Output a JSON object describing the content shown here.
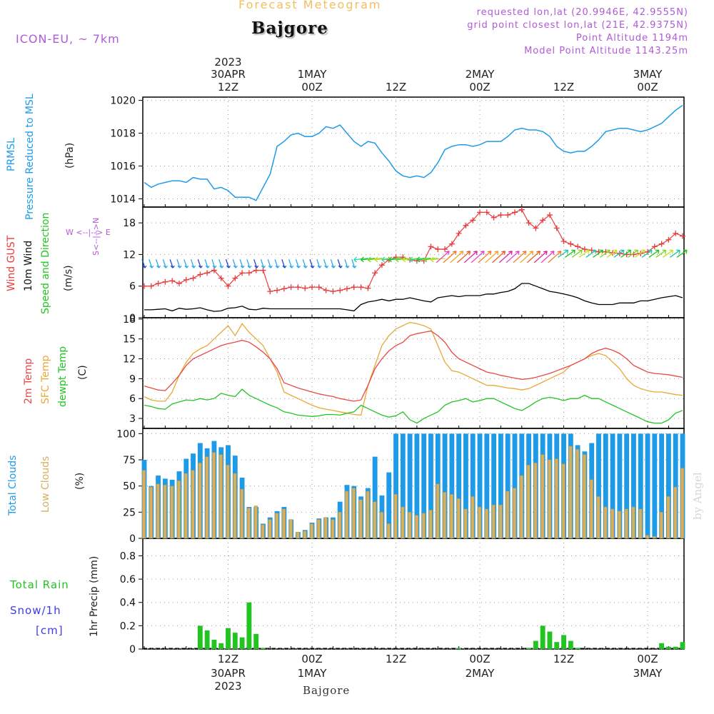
{
  "header": {
    "subtitle": "Forecast Meteogram",
    "title": "Bajgore",
    "model": "ICON-EU, ~ 7km",
    "requested": "requested lon,lat (20.9946E, 42.9555N)",
    "grid_point": "grid point closest lon,lat (21E, 42.9375N)",
    "point_altitude": "Point Altitude 1194m",
    "model_altitude": "Model Point Altitude 1143.25m"
  },
  "time_axis": {
    "top_labels": [
      {
        "l1": "2023",
        "l2": "30APR",
        "l3": "12Z",
        "hour": 12
      },
      {
        "l1": "",
        "l2": "1MAY",
        "l3": "00Z",
        "hour": 24
      },
      {
        "l1": "",
        "l2": "",
        "l3": "12Z",
        "hour": 36
      },
      {
        "l1": "",
        "l2": "2MAY",
        "l3": "00Z",
        "hour": 48
      },
      {
        "l1": "",
        "l2": "",
        "l3": "12Z",
        "hour": 60
      },
      {
        "l1": "",
        "l2": "3MAY",
        "l3": "00Z",
        "hour": 72
      }
    ],
    "bottom_labels": [
      {
        "l1": "12Z",
        "l2": "30APR",
        "l3": "2023",
        "hour": 12
      },
      {
        "l1": "00Z",
        "l2": "1MAY",
        "l3": "",
        "hour": 24
      },
      {
        "l1": "12Z",
        "l2": "",
        "l3": "",
        "hour": 36
      },
      {
        "l1": "00Z",
        "l2": "2MAY",
        "l3": "",
        "hour": 48
      },
      {
        "l1": "12Z",
        "l2": "",
        "l3": "",
        "hour": 60
      },
      {
        "l1": "00Z",
        "l2": "3MAY",
        "l3": "",
        "hour": 72
      }
    ],
    "bottom_name": "Bajgore"
  },
  "panel_labels": {
    "pressure": {
      "l1": "PRMSL",
      "l2": "Pressure Reduced to MSL",
      "unit": "(hPa)"
    },
    "wind": {
      "gust": "Wind GUST",
      "wind10": "10m Wind",
      "dir": "Speed and Direction",
      "unit": "(m/s)",
      "compass": "W <--|--> E",
      "compass_ns": "S<--|-->N"
    },
    "temp": {
      "t2m": "2m Temp",
      "sfc": "SFC Temp",
      "dew": "dewpt Temp",
      "unit": "(C)"
    },
    "clouds": {
      "total": "Total Clouds",
      "low": "Low Clouds",
      "unit": "(%)"
    },
    "precip": {
      "rain": "Total  Rain",
      "snow": "Snow/1h",
      "snow_unit": "[cm]",
      "ylabel": "1hr Precip (mm)"
    }
  },
  "watermark": "by Angel",
  "colors": {
    "pressure": "#1e9be8",
    "gust": "#e83c3c",
    "wind10": "#000000",
    "t2m": "#e84848",
    "sfc": "#e8a838",
    "dew": "#22c422",
    "total_cloud": "#1e9be8",
    "low_cloud": "#d4b060",
    "rain": "#22c422",
    "purple": "#b05ad8"
  },
  "chart_data": [
    {
      "type": "line",
      "title": "",
      "ylabel": "PRMSL Pressure Reduced to MSL (hPa)",
      "ylim": [
        1013.5,
        1020.2
      ],
      "yticks": [
        1014,
        1016,
        1018,
        1020
      ],
      "x_start_hour": 0,
      "x_step_hours": 1,
      "series": [
        {
          "name": "PRMSL",
          "values": [
            1015.0,
            1014.7,
            1014.9,
            1015.0,
            1015.1,
            1015.1,
            1015.0,
            1015.3,
            1015.2,
            1015.2,
            1014.6,
            1014.7,
            1014.5,
            1014.1,
            1014.1,
            1014.1,
            1013.9,
            1014.7,
            1015.5,
            1017.2,
            1017.5,
            1017.9,
            1018.0,
            1017.8,
            1017.8,
            1018.0,
            1018.4,
            1018.3,
            1018.5,
            1018.0,
            1017.5,
            1017.2,
            1017.5,
            1017.4,
            1016.8,
            1016.3,
            1015.7,
            1015.4,
            1015.3,
            1015.4,
            1015.3,
            1015.6,
            1016.2,
            1017.0,
            1017.2,
            1017.3,
            1017.3,
            1017.2,
            1017.3,
            1017.5,
            1017.5,
            1017.5,
            1017.8,
            1018.2,
            1018.3,
            1018.2,
            1018.2,
            1018.1,
            1017.8,
            1017.2,
            1016.9,
            1016.8,
            1016.9,
            1016.9,
            1017.2,
            1017.6,
            1018.1,
            1018.2,
            1018.3,
            1018.3,
            1018.2,
            1018.1,
            1018.2,
            1018.4,
            1018.6,
            1019.0,
            1019.4,
            1019.7
          ]
        }
      ],
      "grid": true
    },
    {
      "type": "line",
      "title": "",
      "ylabel": "(m/s)",
      "ylim": [
        0,
        21
      ],
      "yticks": [
        0,
        6,
        12,
        18
      ],
      "x_start_hour": 0,
      "x_step_hours": 1,
      "series": [
        {
          "name": "Wind GUST",
          "values": [
            6.0,
            6.0,
            6.5,
            6.8,
            7.0,
            6.5,
            7.2,
            7.5,
            8.2,
            8.5,
            9.0,
            7.5,
            6.0,
            7.5,
            8.5,
            8.5,
            9.0,
            9.0,
            5.0,
            5.2,
            5.5,
            5.8,
            5.8,
            5.6,
            5.8,
            5.8,
            5.2,
            5.0,
            5.2,
            5.5,
            5.8,
            5.8,
            5.6,
            8.5,
            10.0,
            11.0,
            11.5,
            11.5,
            11.0,
            10.8,
            10.8,
            13.5,
            13.0,
            13.0,
            14.0,
            16.0,
            17.5,
            18.5,
            20.0,
            20.0,
            19.0,
            19.5,
            19.5,
            20.0,
            20.5,
            18.0,
            17.0,
            18.5,
            19.5,
            17.0,
            14.5,
            14.0,
            13.5,
            13.0,
            12.8,
            12.5,
            12.5,
            12.3,
            12.2,
            12.0,
            12.0,
            12.2,
            12.5,
            13.5,
            14.0,
            14.8,
            16.0,
            15.5
          ]
        },
        {
          "name": "10m Wind",
          "values": [
            1.5,
            1.5,
            1.6,
            1.7,
            1.3,
            1.8,
            1.6,
            1.7,
            1.9,
            1.5,
            1.2,
            1.3,
            1.8,
            1.9,
            2.2,
            1.6,
            1.5,
            1.8,
            1.7,
            1.7,
            1.7,
            1.7,
            1.7,
            1.7,
            1.7,
            1.7,
            1.7,
            1.7,
            1.7,
            1.5,
            1.3,
            2.5,
            3.0,
            3.2,
            3.5,
            3.2,
            3.5,
            3.5,
            3.8,
            3.5,
            3.2,
            3.0,
            3.8,
            4.0,
            4.2,
            4.0,
            4.2,
            4.2,
            4.2,
            4.5,
            4.5,
            4.8,
            5.0,
            5.5,
            6.5,
            6.5,
            6.0,
            5.5,
            5.0,
            4.8,
            4.5,
            4.2,
            3.8,
            3.2,
            2.8,
            2.5,
            2.5,
            2.5,
            2.8,
            2.8,
            2.8,
            3.2,
            3.2,
            3.5,
            3.8,
            4.0,
            4.2,
            3.8
          ]
        }
      ],
      "wind_barbs_y": [
        10,
        10,
        10,
        10,
        10,
        10,
        10,
        10,
        10,
        10,
        10,
        10,
        10,
        10,
        10,
        10,
        10,
        10,
        10,
        10,
        10,
        10,
        10,
        10,
        10,
        10,
        10,
        10,
        10,
        10,
        10,
        11,
        11,
        11,
        11,
        11,
        11,
        11,
        11,
        11,
        11,
        11,
        11,
        11,
        11,
        11,
        11,
        11,
        11,
        11,
        11,
        11,
        11,
        11,
        11,
        11,
        11,
        11,
        11,
        11,
        12,
        12,
        12,
        12,
        12,
        12,
        12,
        12,
        12,
        12,
        12,
        12,
        12,
        12,
        12,
        12,
        12,
        12
      ],
      "grid": true
    },
    {
      "type": "line",
      "title": "",
      "ylabel": "(C)",
      "ylim": [
        1.5,
        18.2
      ],
      "yticks": [
        3,
        6,
        9,
        12,
        15,
        18
      ],
      "x_start_hour": 0,
      "x_step_hours": 1,
      "series": [
        {
          "name": "2m Temp",
          "values": [
            7.9,
            7.6,
            7.3,
            7.2,
            8.3,
            9.5,
            11.0,
            12.0,
            12.5,
            13.0,
            13.5,
            14.0,
            14.3,
            14.5,
            14.8,
            14.5,
            13.8,
            13.0,
            12.0,
            10.5,
            8.4,
            8.0,
            7.6,
            7.3,
            7.0,
            6.7,
            6.5,
            6.3,
            6.0,
            5.8,
            5.6,
            5.8,
            8.0,
            10.5,
            12.0,
            13.2,
            14.0,
            14.5,
            15.5,
            15.8,
            16.0,
            16.2,
            15.5,
            14.5,
            13.0,
            12.0,
            11.5,
            11.0,
            10.5,
            10.0,
            9.8,
            9.5,
            9.3,
            9.1,
            8.9,
            9.0,
            9.2,
            9.5,
            9.8,
            10.2,
            10.6,
            11.0,
            11.5,
            12.0,
            12.8,
            13.3,
            13.6,
            13.3,
            12.8,
            12.0,
            11.0,
            10.5,
            10.0,
            9.8,
            9.7,
            9.6,
            9.4,
            9.2
          ]
        },
        {
          "name": "SFC Temp",
          "values": [
            6.3,
            5.8,
            5.6,
            5.6,
            7.0,
            9.5,
            11.5,
            12.8,
            13.5,
            14.0,
            15.0,
            16.0,
            17.0,
            15.5,
            17.3,
            16.0,
            15.0,
            14.0,
            12.0,
            10.0,
            7.0,
            6.5,
            6.0,
            5.5,
            5.0,
            4.6,
            4.4,
            4.2,
            4.0,
            3.8,
            3.6,
            3.5,
            8.0,
            11.0,
            14.0,
            15.5,
            16.5,
            17.0,
            17.5,
            17.3,
            17.0,
            16.5,
            14.0,
            11.5,
            10.2,
            10.0,
            9.5,
            9.0,
            8.5,
            8.0,
            8.0,
            7.8,
            7.6,
            7.5,
            7.3,
            7.5,
            8.0,
            8.5,
            9.0,
            9.5,
            10.0,
            11.0,
            11.5,
            12.0,
            12.5,
            12.8,
            12.5,
            11.5,
            10.5,
            9.0,
            8.0,
            7.5,
            7.2,
            7.0,
            7.0,
            6.8,
            6.6,
            6.5
          ]
        },
        {
          "name": "dewpt Temp",
          "values": [
            5.0,
            4.8,
            4.5,
            4.4,
            5.2,
            5.5,
            5.8,
            5.7,
            6.0,
            5.8,
            6.0,
            6.8,
            6.5,
            6.3,
            7.4,
            6.5,
            6.0,
            5.5,
            5.0,
            4.6,
            4.0,
            3.8,
            3.5,
            3.4,
            3.3,
            3.4,
            3.6,
            3.6,
            3.5,
            3.8,
            4.0,
            5.0,
            4.5,
            4.0,
            3.5,
            3.2,
            3.4,
            4.0,
            2.8,
            2.3,
            3.0,
            3.5,
            4.0,
            5.0,
            5.5,
            5.7,
            6.0,
            5.5,
            5.7,
            6.0,
            6.0,
            5.5,
            5.0,
            4.5,
            4.2,
            4.8,
            5.5,
            6.0,
            6.2,
            6.0,
            5.7,
            6.0,
            6.0,
            6.5,
            6.0,
            6.0,
            5.5,
            5.0,
            4.5,
            4.0,
            3.5,
            3.0,
            2.5,
            2.3,
            2.3,
            2.8,
            3.8,
            4.2
          ]
        }
      ],
      "grid": true
    },
    {
      "type": "bar",
      "title": "",
      "ylabel": "(%)",
      "ylim": [
        0,
        105
      ],
      "yticks": [
        0,
        25,
        50,
        75,
        100
      ],
      "x_start_hour": 0,
      "x_step_hours": 1,
      "series": [
        {
          "name": "Total Clouds",
          "values": [
            75,
            50,
            60,
            57,
            56,
            64,
            76,
            81,
            91,
            86,
            93,
            87,
            89,
            79,
            58,
            30,
            30,
            14,
            20,
            26,
            30,
            18,
            6,
            8,
            15,
            19,
            20,
            20,
            35,
            51,
            50,
            40,
            48,
            78,
            41,
            63,
            100,
            100,
            100,
            100,
            100,
            100,
            100,
            100,
            100,
            100,
            100,
            100,
            100,
            100,
            100,
            100,
            100,
            100,
            100,
            100,
            100,
            100,
            100,
            100,
            100,
            100,
            89,
            83,
            91,
            100,
            100,
            100,
            100,
            100,
            100,
            100,
            100,
            100,
            100,
            100,
            100,
            100
          ]
        },
        {
          "name": "Low Clouds",
          "values": [
            65,
            49,
            52,
            51,
            50,
            55,
            62,
            65,
            72,
            78,
            82,
            80,
            70,
            62,
            47,
            29,
            31,
            13,
            18,
            24,
            28,
            18,
            6,
            7,
            14,
            18,
            20,
            18,
            25,
            45,
            48,
            37,
            45,
            35,
            25,
            14,
            42,
            30,
            25,
            22,
            24,
            27,
            52,
            44,
            42,
            38,
            28,
            40,
            30,
            28,
            32,
            32,
            45,
            48,
            60,
            70,
            72,
            80,
            75,
            76,
            71,
            88,
            85,
            80,
            56,
            40,
            30,
            28,
            26,
            28,
            30,
            28,
            3,
            2,
            25,
            40,
            49,
            67
          ]
        }
      ],
      "grid": true
    },
    {
      "type": "bar",
      "title": "",
      "ylabel": "1hr Precip (mm)",
      "ylim": [
        0,
        0.95
      ],
      "yticks": [
        0,
        0.2,
        0.4,
        0.6,
        0.8
      ],
      "x_start_hour": 0,
      "x_step_hours": 1,
      "series": [
        {
          "name": "Total Rain",
          "values": [
            0,
            0,
            0,
            0,
            0,
            0,
            0,
            0,
            0.2,
            0.16,
            0.08,
            0.05,
            0.18,
            0.14,
            0.1,
            0.4,
            0.13,
            0.01,
            0,
            0,
            0,
            0,
            0,
            0,
            0,
            0,
            0,
            0,
            0,
            0,
            0,
            0,
            0,
            0,
            0,
            0,
            0,
            0,
            0,
            0,
            0,
            0,
            0,
            0,
            0,
            0.01,
            0,
            0,
            0,
            0,
            0,
            0,
            0,
            0,
            0,
            0.01,
            0.07,
            0.2,
            0.15,
            0.06,
            0.12,
            0.07,
            0.01,
            0,
            0,
            0,
            0,
            0,
            0,
            0,
            0,
            0,
            0,
            0,
            0.05,
            0.02,
            0.02,
            0.06
          ]
        },
        {
          "name": "Snow/1h",
          "values": []
        }
      ],
      "grid": true
    }
  ]
}
